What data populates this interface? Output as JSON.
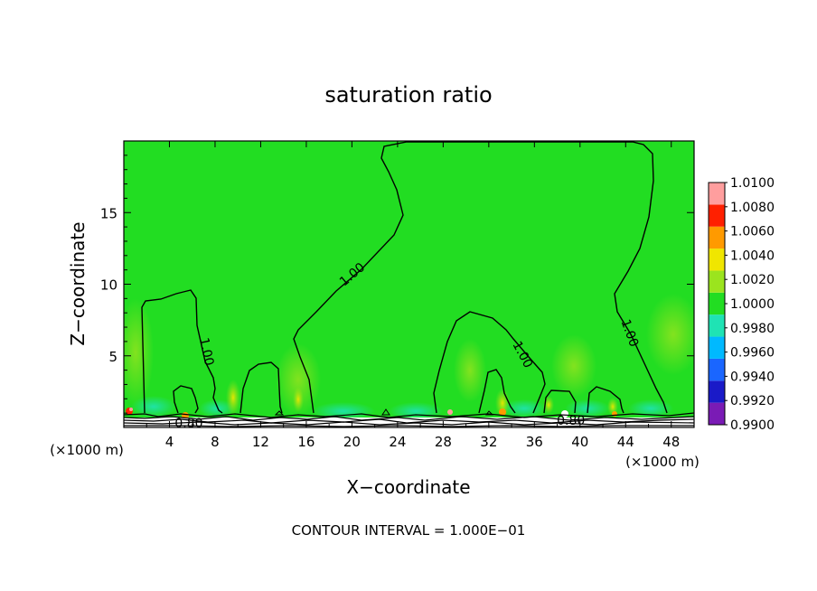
{
  "chart_data": {
    "type": "heatmap",
    "title": "saturation ratio",
    "xlabel": "X−coordinate",
    "ylabel": "Z−coordinate",
    "x_unit_label": "(×1000 m)",
    "footer": "CONTOUR INTERVAL = 1.000E−01",
    "xlim": [
      0,
      50
    ],
    "ylim": [
      0,
      20
    ],
    "x_ticks": [
      4,
      8,
      12,
      16,
      20,
      24,
      28,
      32,
      36,
      40,
      44,
      48
    ],
    "y_ticks": [
      5,
      10,
      15
    ],
    "contour_labels": [
      {
        "text": "1.00",
        "x": 7.3,
        "z": 5.3
      },
      {
        "text": "1.00",
        "x": 20.0,
        "z": 10.7
      },
      {
        "text": "1.00",
        "x": 35.0,
        "z": 5.1
      },
      {
        "text": "1.00",
        "x": 44.4,
        "z": 6.6
      },
      {
        "text": "0.80",
        "x": 5.7,
        "z": 0.3
      },
      {
        "text": "0.80",
        "x": 39.2,
        "z": 0.5
      }
    ],
    "colorbar": {
      "levels": [
        "0.9900",
        "0.9920",
        "0.9940",
        "0.9960",
        "0.9980",
        "1.0000",
        "1.0020",
        "1.0040",
        "1.0060",
        "1.0080",
        "1.0100"
      ],
      "colors": [
        "#7a1bb5",
        "#1a1ac8",
        "#1a66ff",
        "#00b9ff",
        "#1fe3b4",
        "#22dd22",
        "#9be41e",
        "#f0e600",
        "#ff9a00",
        "#ff2000",
        "#ff9e9e"
      ]
    },
    "background_color": "#22dd22",
    "contour_color": "#000000",
    "contour_values": [
      "0.80",
      "1.00"
    ]
  }
}
